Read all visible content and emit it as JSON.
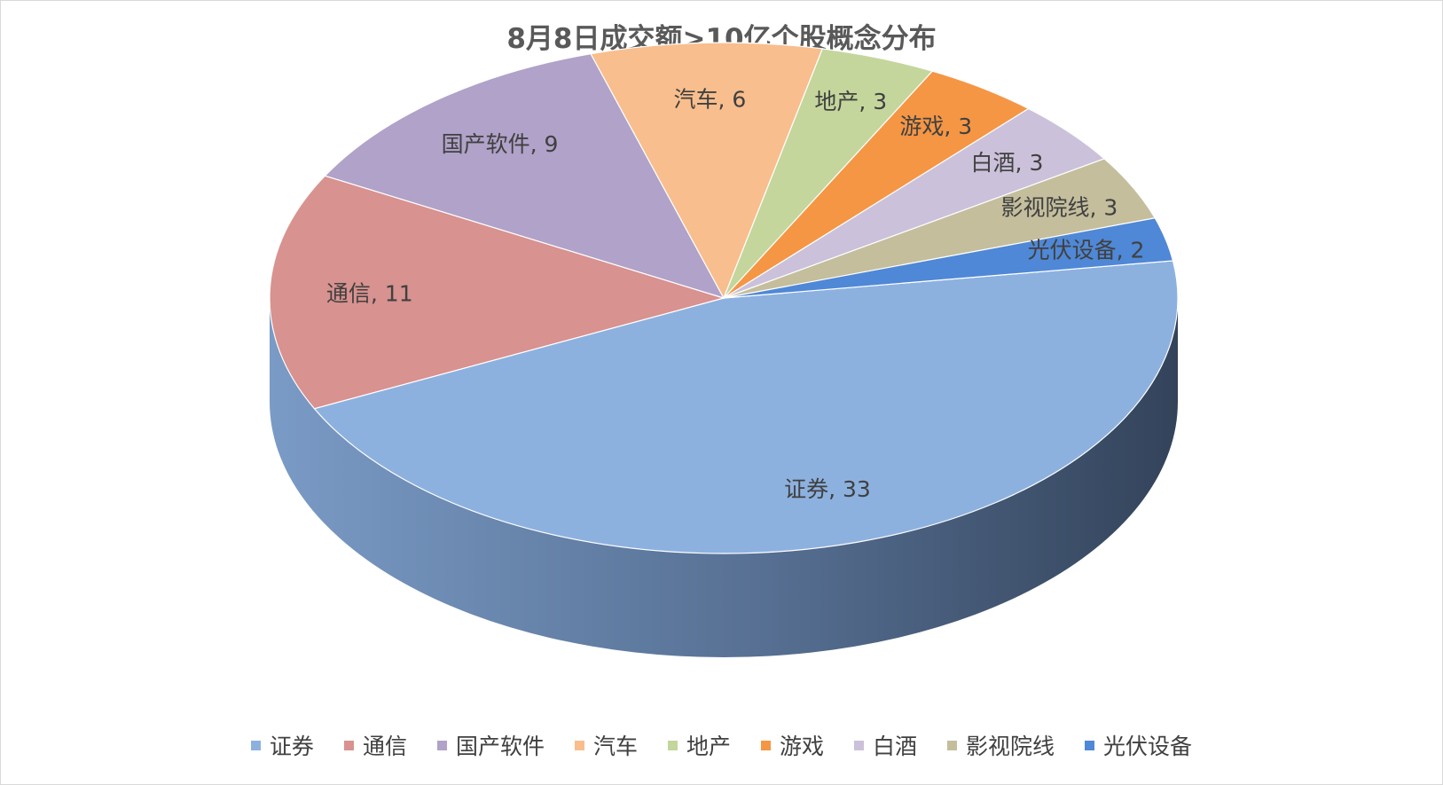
{
  "chart_data": {
    "type": "pie",
    "title": "8月8日成交额>10亿个股概念分布",
    "label_separator": ", ",
    "slices": [
      {
        "name": "证券",
        "value": 33,
        "color": "#8DB1DF"
      },
      {
        "name": "通信",
        "value": 11,
        "color": "#D8928F"
      },
      {
        "name": "国产软件",
        "value": 9,
        "color": "#B1A2C9"
      },
      {
        "name": "汽车",
        "value": 6,
        "color": "#F8BE8D"
      },
      {
        "name": "地产",
        "value": 3,
        "color": "#C4D69C"
      },
      {
        "name": "游戏",
        "value": 3,
        "color": "#F59645"
      },
      {
        "name": "白酒",
        "value": 3,
        "color": "#CBC1DA"
      },
      {
        "name": "影视院线",
        "value": 3,
        "color": "#C4BE9D"
      },
      {
        "name": "光伏设备",
        "value": 2,
        "color": "#4F88D6"
      }
    ],
    "legend_position": "bottom",
    "style": "3d"
  }
}
